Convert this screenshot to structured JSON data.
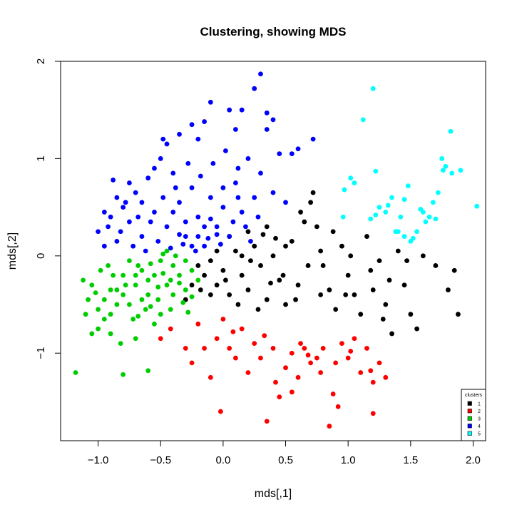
{
  "chart_data": {
    "type": "scatter",
    "title": "Clustering, showing MDS",
    "xlabel": "mds[,1]",
    "ylabel": "mds[,2]",
    "xlim": [
      -1.3,
      2.1
    ],
    "ylim": [
      -1.9,
      2.0
    ],
    "xticks": [
      -1.0,
      -0.5,
      0.0,
      0.5,
      1.0,
      1.5,
      2.0
    ],
    "xtick_labels": [
      "−1.0",
      "−0.5",
      "0.0",
      "0.5",
      "1.0",
      "1.5",
      "2.0"
    ],
    "yticks": [
      -1,
      0,
      1,
      2
    ],
    "ytick_labels": [
      "−1",
      "0",
      "1",
      "2"
    ],
    "grid": false,
    "legend": {
      "title": "clusters",
      "position": "bottom-right",
      "entries": [
        "1",
        "2",
        "3",
        "4",
        "5"
      ]
    },
    "series": [
      {
        "name": "1",
        "color": "#000000",
        "points": [
          [
            -0.2,
            -0.1
          ],
          [
            -0.15,
            -0.2
          ],
          [
            -0.1,
            -0.05
          ],
          [
            -0.05,
            -0.3
          ],
          [
            0.0,
            -0.15
          ],
          [
            0.05,
            -0.4
          ],
          [
            0.1,
            0.05
          ],
          [
            0.15,
            -0.2
          ],
          [
            0.2,
            -0.35
          ],
          [
            0.25,
            0.1
          ],
          [
            0.3,
            -0.1
          ],
          [
            0.35,
            -0.45
          ],
          [
            0.4,
            0.0
          ],
          [
            0.45,
            -0.25
          ],
          [
            0.5,
            -0.5
          ],
          [
            0.55,
            0.15
          ],
          [
            0.6,
            -0.3
          ],
          [
            0.65,
            0.35
          ],
          [
            0.7,
            0.55
          ],
          [
            0.72,
            0.65
          ],
          [
            0.75,
            0.3
          ],
          [
            0.8,
            -0.1
          ],
          [
            0.85,
            -0.35
          ],
          [
            0.9,
            -0.55
          ],
          [
            0.95,
            0.1
          ],
          [
            1.0,
            -0.2
          ],
          [
            1.05,
            -0.4
          ],
          [
            1.1,
            -0.6
          ],
          [
            1.15,
            0.2
          ],
          [
            1.2,
            -0.35
          ],
          [
            1.25,
            -0.05
          ],
          [
            1.3,
            -0.5
          ],
          [
            1.35,
            -0.8
          ],
          [
            1.4,
            0.05
          ],
          [
            1.45,
            -0.3
          ],
          [
            1.5,
            -0.6
          ],
          [
            1.55,
            -0.75
          ],
          [
            1.6,
            0.0
          ],
          [
            1.7,
            -0.1
          ],
          [
            1.8,
            -0.35
          ],
          [
            1.85,
            -0.15
          ],
          [
            1.88,
            -0.6
          ],
          [
            -0.25,
            -0.3
          ],
          [
            -0.3,
            -0.45
          ],
          [
            -0.1,
            -0.4
          ],
          [
            0.05,
            0.2
          ],
          [
            0.2,
            0.25
          ],
          [
            0.35,
            0.3
          ],
          [
            0.5,
            0.1
          ],
          [
            0.62,
            0.45
          ],
          [
            0.48,
            -0.2
          ],
          [
            0.28,
            -0.55
          ],
          [
            0.12,
            -0.5
          ],
          [
            -0.05,
            0.05
          ],
          [
            0.42,
            0.18
          ],
          [
            0.68,
            -0.1
          ],
          [
            0.78,
            0.05
          ],
          [
            0.88,
            0.25
          ],
          [
            1.02,
            0.0
          ],
          [
            1.18,
            -0.15
          ],
          [
            1.33,
            -0.25
          ],
          [
            1.47,
            -0.05
          ],
          [
            0.58,
            -0.45
          ],
          [
            0.22,
            -0.05
          ],
          [
            0.02,
            -0.25
          ],
          [
            -0.18,
            -0.35
          ],
          [
            0.32,
            0.22
          ],
          [
            0.15,
            0.0
          ],
          [
            0.38,
            -0.28
          ],
          [
            0.78,
            -0.4
          ],
          [
            0.98,
            -0.4
          ],
          [
            1.28,
            -0.65
          ]
        ]
      },
      {
        "name": "2",
        "color": "#ff0000",
        "points": [
          [
            -0.5,
            -0.85
          ],
          [
            -0.42,
            -0.75
          ],
          [
            -0.3,
            -0.95
          ],
          [
            -0.25,
            -1.1
          ],
          [
            -0.2,
            -0.7
          ],
          [
            -0.1,
            -1.25
          ],
          [
            -0.05,
            -0.85
          ],
          [
            0.0,
            -0.65
          ],
          [
            0.05,
            -0.95
          ],
          [
            0.1,
            -1.05
          ],
          [
            0.15,
            -0.75
          ],
          [
            0.2,
            -1.2
          ],
          [
            0.3,
            -1.05
          ],
          [
            0.35,
            -1.7
          ],
          [
            0.4,
            -0.95
          ],
          [
            0.45,
            -1.45
          ],
          [
            0.5,
            -1.15
          ],
          [
            0.55,
            -1.0
          ],
          [
            0.6,
            -1.25
          ],
          [
            0.65,
            -0.95
          ],
          [
            0.7,
            -1.1
          ],
          [
            0.75,
            -1.05
          ],
          [
            0.8,
            -0.95
          ],
          [
            0.85,
            -1.75
          ],
          [
            0.9,
            -1.1
          ],
          [
            0.95,
            -0.9
          ],
          [
            1.0,
            -1.05
          ],
          [
            1.05,
            -0.85
          ],
          [
            1.1,
            -1.2
          ],
          [
            1.15,
            -0.95
          ],
          [
            1.2,
            -1.3
          ],
          [
            1.25,
            -1.1
          ],
          [
            1.3,
            -1.25
          ],
          [
            0.92,
            -1.55
          ],
          [
            0.55,
            -1.4
          ],
          [
            0.78,
            -1.2
          ],
          [
            1.2,
            -1.62
          ],
          [
            -0.02,
            -1.6
          ],
          [
            0.62,
            -0.9
          ],
          [
            0.25,
            -0.9
          ],
          [
            -0.15,
            -0.95
          ],
          [
            0.08,
            -0.78
          ],
          [
            0.42,
            -1.3
          ],
          [
            0.88,
            -1.42
          ],
          [
            1.02,
            -0.98
          ],
          [
            1.18,
            -1.18
          ],
          [
            0.33,
            -0.82
          ],
          [
            0.68,
            -1.02
          ]
        ]
      },
      {
        "name": "3",
        "color": "#00cd00",
        "points": [
          [
            -1.18,
            -1.2
          ],
          [
            -1.1,
            -0.6
          ],
          [
            -1.05,
            -0.3
          ],
          [
            -1.0,
            -0.75
          ],
          [
            -0.95,
            -0.45
          ],
          [
            -0.9,
            -0.6
          ],
          [
            -0.85,
            -0.35
          ],
          [
            -0.8,
            -0.2
          ],
          [
            -0.75,
            -0.5
          ],
          [
            -0.7,
            -0.3
          ],
          [
            -0.65,
            -0.15
          ],
          [
            -0.6,
            -0.4
          ],
          [
            -0.55,
            -0.2
          ],
          [
            -0.5,
            -0.05
          ],
          [
            -0.45,
            -0.3
          ],
          [
            -0.4,
            -0.1
          ],
          [
            -0.35,
            -0.2
          ],
          [
            -0.3,
            -0.35
          ],
          [
            -0.25,
            -0.15
          ],
          [
            -0.8,
            -1.22
          ],
          [
            -0.6,
            -1.18
          ],
          [
            -0.82,
            -0.9
          ],
          [
            -1.12,
            -0.25
          ],
          [
            -0.92,
            -0.1
          ],
          [
            -0.72,
            -0.65
          ],
          [
            -0.62,
            -0.55
          ],
          [
            -0.52,
            -0.45
          ],
          [
            -0.42,
            -0.55
          ],
          [
            -0.32,
            -0.48
          ],
          [
            -0.28,
            -0.58
          ],
          [
            -0.48,
            0.02
          ],
          [
            -0.38,
            0.0
          ],
          [
            -0.58,
            -0.08
          ],
          [
            -0.68,
            -0.1
          ],
          [
            -0.78,
            -0.3
          ],
          [
            -0.88,
            -0.2
          ],
          [
            -0.98,
            -0.15
          ],
          [
            -1.08,
            -0.45
          ],
          [
            -1.0,
            -0.55
          ],
          [
            -0.9,
            -0.8
          ],
          [
            -0.7,
            -0.85
          ],
          [
            -0.5,
            -0.6
          ],
          [
            -0.4,
            -0.4
          ],
          [
            -0.3,
            -0.05
          ],
          [
            -0.2,
            -0.25
          ],
          [
            -0.55,
            -0.7
          ],
          [
            -0.65,
            -0.45
          ],
          [
            -0.75,
            -0.05
          ],
          [
            -0.85,
            -0.5
          ],
          [
            -0.95,
            -0.65
          ],
          [
            -1.05,
            -0.8
          ],
          [
            -0.45,
            0.05
          ],
          [
            -0.35,
            -0.28
          ],
          [
            -0.25,
            -0.42
          ],
          [
            -0.6,
            -0.25
          ],
          [
            -0.7,
            -0.2
          ],
          [
            -0.8,
            -0.4
          ],
          [
            -0.9,
            -0.35
          ],
          [
            -1.02,
            -0.38
          ],
          [
            -0.48,
            -0.18
          ],
          [
            -0.42,
            -0.25
          ],
          [
            -0.52,
            -0.32
          ],
          [
            -0.58,
            -0.52
          ],
          [
            -0.68,
            -0.62
          ]
        ]
      },
      {
        "name": "4",
        "color": "#0000ff",
        "points": [
          [
            -1.0,
            0.25
          ],
          [
            -0.95,
            0.1
          ],
          [
            -0.9,
            0.4
          ],
          [
            -0.88,
            0.78
          ],
          [
            -0.85,
            0.15
          ],
          [
            -0.8,
            0.5
          ],
          [
            -0.75,
            0.35
          ],
          [
            -0.7,
            0.65
          ],
          [
            -0.65,
            0.2
          ],
          [
            -0.6,
            0.8
          ],
          [
            -0.55,
            0.45
          ],
          [
            -0.5,
            1.0
          ],
          [
            -0.45,
            0.3
          ],
          [
            -0.4,
            0.85
          ],
          [
            -0.35,
            0.55
          ],
          [
            -0.3,
            0.2
          ],
          [
            -0.25,
            0.7
          ],
          [
            -0.2,
            0.4
          ],
          [
            -0.15,
            0.1
          ],
          [
            -0.1,
            0.6
          ],
          [
            -0.05,
            0.3
          ],
          [
            0.0,
            0.5
          ],
          [
            0.05,
            0.2
          ],
          [
            0.1,
            0.75
          ],
          [
            0.15,
            0.45
          ],
          [
            0.2,
            1.0
          ],
          [
            0.25,
            0.6
          ],
          [
            0.3,
            1.87
          ],
          [
            0.25,
            1.72
          ],
          [
            0.05,
            1.5
          ],
          [
            -0.1,
            1.58
          ],
          [
            -0.15,
            1.38
          ],
          [
            -0.25,
            1.35
          ],
          [
            0.1,
            1.3
          ],
          [
            0.15,
            1.5
          ],
          [
            0.35,
            1.47
          ],
          [
            0.4,
            1.4
          ],
          [
            0.45,
            1.05
          ],
          [
            0.6,
            1.1
          ],
          [
            0.72,
            1.2
          ],
          [
            0.35,
            1.3
          ],
          [
            0.55,
            1.05
          ],
          [
            -0.45,
            1.15
          ],
          [
            -0.35,
            1.25
          ],
          [
            -0.55,
            0.9
          ],
          [
            -0.65,
            0.55
          ],
          [
            -0.75,
            0.75
          ],
          [
            -0.85,
            0.6
          ],
          [
            -0.95,
            0.45
          ],
          [
            -0.92,
            0.3
          ],
          [
            -0.82,
            0.25
          ],
          [
            -0.72,
            0.1
          ],
          [
            -0.62,
            0.05
          ],
          [
            -0.52,
            0.15
          ],
          [
            -0.42,
            0.08
          ],
          [
            -0.32,
            0.12
          ],
          [
            -0.22,
            0.05
          ],
          [
            -0.12,
            0.18
          ],
          [
            -0.02,
            0.12
          ],
          [
            0.08,
            0.35
          ],
          [
            0.18,
            0.3
          ],
          [
            0.28,
            0.4
          ],
          [
            -0.18,
            0.82
          ],
          [
            -0.08,
            0.95
          ],
          [
            0.02,
            1.08
          ],
          [
            0.12,
            0.9
          ],
          [
            -0.28,
            0.95
          ],
          [
            -0.38,
            0.7
          ],
          [
            -0.48,
            0.6
          ],
          [
            -0.58,
            0.35
          ],
          [
            -0.68,
            0.4
          ],
          [
            -0.78,
            0.55
          ],
          [
            -0.48,
            1.2
          ],
          [
            -0.2,
            1.2
          ],
          [
            0.3,
            0.85
          ],
          [
            0.5,
            0.55
          ],
          [
            0.4,
            0.65
          ],
          [
            -0.1,
            0.38
          ],
          [
            -0.2,
            0.2
          ],
          [
            -0.3,
            0.35
          ],
          [
            -0.4,
            0.45
          ],
          [
            0.0,
            0.7
          ],
          [
            0.22,
            0.15
          ],
          [
            -0.05,
            0.22
          ],
          [
            -0.15,
            0.3
          ],
          [
            -0.25,
            0.1
          ],
          [
            -0.35,
            0.22
          ],
          [
            0.12,
            0.6
          ]
        ]
      },
      {
        "name": "5",
        "color": "#00ffff",
        "points": [
          [
            1.2,
            1.72
          ],
          [
            1.12,
            1.4
          ],
          [
            1.22,
            0.87
          ],
          [
            1.02,
            0.8
          ],
          [
            0.97,
            0.68
          ],
          [
            1.05,
            0.75
          ],
          [
            1.18,
            0.38
          ],
          [
            1.25,
            0.5
          ],
          [
            1.3,
            0.45
          ],
          [
            1.35,
            0.6
          ],
          [
            1.4,
            0.25
          ],
          [
            1.45,
            0.58
          ],
          [
            1.48,
            0.72
          ],
          [
            1.5,
            0.15
          ],
          [
            1.55,
            0.25
          ],
          [
            1.6,
            0.45
          ],
          [
            1.65,
            0.4
          ],
          [
            1.68,
            0.55
          ],
          [
            1.72,
            0.65
          ],
          [
            1.75,
            1.0
          ],
          [
            1.78,
            0.92
          ],
          [
            1.82,
            1.28
          ],
          [
            1.83,
            0.85
          ],
          [
            1.9,
            0.88
          ],
          [
            2.03,
            0.51
          ],
          [
            1.38,
            0.25
          ],
          [
            1.45,
            0.2
          ],
          [
            1.52,
            0.18
          ],
          [
            1.62,
            0.35
          ],
          [
            1.7,
            0.38
          ],
          [
            0.96,
            0.4
          ],
          [
            1.22,
            0.42
          ],
          [
            1.32,
            0.52
          ],
          [
            1.42,
            0.4
          ],
          [
            1.58,
            0.48
          ],
          [
            1.76,
            0.88
          ]
        ]
      }
    ]
  }
}
